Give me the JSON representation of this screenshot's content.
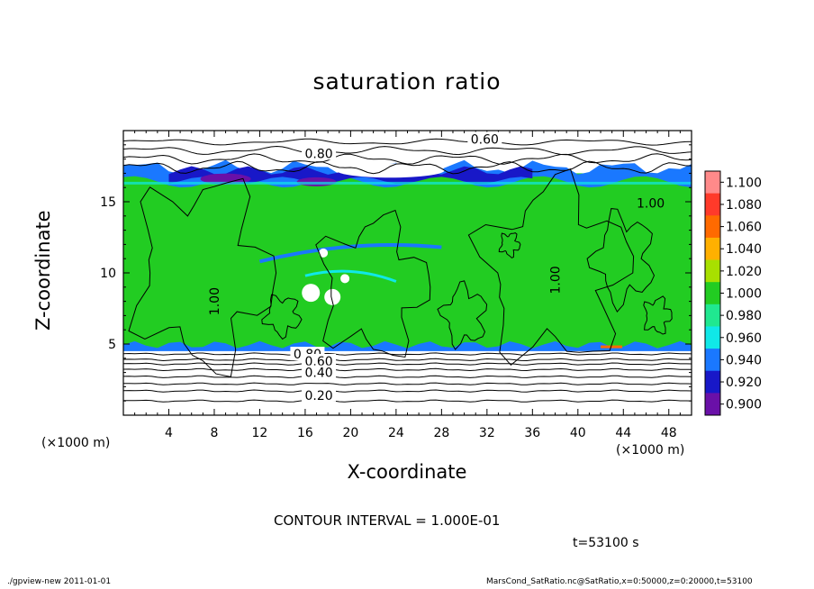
{
  "chart_data": {
    "type": "heatmap",
    "title": "saturation ratio",
    "xlabel": "X-coordinate",
    "ylabel": "Z-coordinate",
    "x_unit": "(×1000 m)",
    "xlim": [
      0,
      50
    ],
    "ylim": [
      0,
      20
    ],
    "x_ticks": [
      4,
      8,
      12,
      16,
      20,
      24,
      28,
      32,
      36,
      40,
      44,
      48
    ],
    "y_ticks": [
      5,
      10,
      15
    ],
    "colorbar": {
      "levels": [
        "1.100",
        "1.080",
        "1.060",
        "1.040",
        "1.020",
        "1.000",
        "0.980",
        "0.960",
        "0.940",
        "0.920",
        "0.900"
      ],
      "colors": [
        "#ff8a8a",
        "#ff3a2a",
        "#ff6a00",
        "#ffb000",
        "#a8e000",
        "#22cc22",
        "#20e890",
        "#10e8e8",
        "#1a78ff",
        "#1818c8",
        "#6a10a8"
      ]
    },
    "contour_labels": [
      {
        "text": "0.60",
        "x": 31.8,
        "z": 19.4
      },
      {
        "text": "0.80",
        "x": 17.2,
        "z": 18.4
      },
      {
        "text": "1.00",
        "x": 46.4,
        "z": 14.9
      },
      {
        "text": "1.00",
        "x": 8.0,
        "z": 8.0
      },
      {
        "text": "1.00",
        "x": 38.0,
        "z": 9.5
      },
      {
        "text": "0.80",
        "x": 16.2,
        "z": 4.3
      },
      {
        "text": "0.60",
        "x": 17.2,
        "z": 3.8
      },
      {
        "text": "0.40",
        "x": 17.2,
        "z": 3.0
      },
      {
        "text": "0.20",
        "x": 17.2,
        "z": 1.4
      }
    ],
    "contour_interval": "CONTOUR INTERVAL = 1.000E-01",
    "time": "t=53100 s"
  },
  "footer": {
    "left": "./gpview-new  2011-01-01",
    "right": "MarsCond_SatRatio.nc@SatRatio,x=0:50000,z=0:20000,t=53100"
  }
}
